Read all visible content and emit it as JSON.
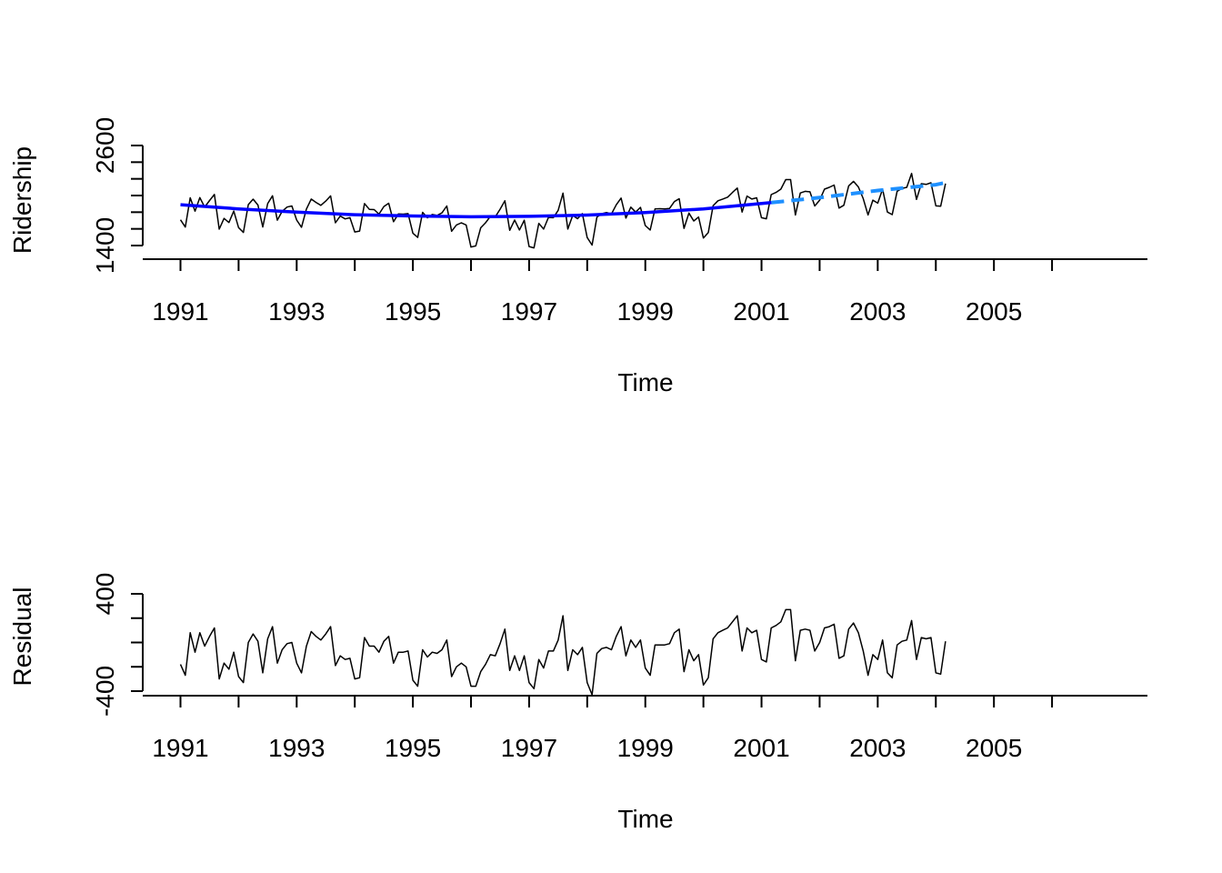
{
  "chart_data": [
    {
      "type": "line",
      "xlabel": "Time",
      "ylabel": "Ridership",
      "xlim": [
        1991,
        2006.75
      ],
      "ylim": [
        1400,
        2600
      ],
      "x_ticks": [
        1991,
        1992,
        1993,
        1994,
        1995,
        1996,
        1997,
        1998,
        1999,
        2000,
        2001,
        2002,
        2003,
        2004,
        2005,
        2006
      ],
      "x_tick_labels": [
        "1991",
        "1993",
        "1995",
        "1997",
        "1999",
        "2001",
        "2003",
        "2005"
      ],
      "y_ticks": [
        1400,
        1600,
        1800,
        2000,
        2200,
        2400,
        2600
      ],
      "y_tick_labels": [
        "1400",
        "2600"
      ],
      "series": [
        {
          "style": "solid-thin",
          "color": "#000000",
          "start": 1991,
          "step": 0.0833333,
          "values": [
            1709,
            1621,
            1973,
            1812,
            1975,
            1862,
            1940,
            2013,
            1596,
            1725,
            1676,
            1814,
            1615,
            1557,
            1891,
            1956,
            1885,
            1623,
            1903,
            1997,
            1704,
            1810,
            1862,
            1875,
            1705,
            1619,
            1837,
            1957,
            1917,
            1882,
            1933,
            1996,
            1673,
            1753,
            1720,
            1734,
            1563,
            1574,
            1903,
            1834,
            1831,
            1776,
            1868,
            1907,
            1686,
            1779,
            1776,
            1783,
            1548,
            1497,
            1798,
            1733,
            1772,
            1761,
            1792,
            1875,
            1571,
            1647,
            1673,
            1646,
            1381,
            1396,
            1613,
            1673,
            1750,
            1744,
            1835,
            1937,
            1582,
            1706,
            1587,
            1703,
            1388,
            1372,
            1666,
            1597,
            1737,
            1734,
            1822,
            2028,
            1597,
            1761,
            1722,
            1783,
            1496,
            1405,
            1740,
            1782,
            1796,
            1779,
            1889,
            1969,
            1729,
            1860,
            1801,
            1858,
            1640,
            1587,
            1839,
            1842,
            1840,
            1845,
            1927,
            1962,
            1606,
            1789,
            1695,
            1741,
            1491,
            1555,
            1878,
            1937,
            1957,
            1980,
            2037,
            2090,
            1802,
            1994,
            1957,
            1973,
            1734,
            1721,
            2011,
            2037,
            2076,
            2191,
            2191,
            1767,
            2031,
            2050,
            2045,
            1875,
            1944,
            2076,
            2098,
            2125,
            1850,
            1883,
            2116,
            2170,
            2103,
            1963,
            1767,
            1944,
            1908,
            2076,
            1801,
            1771,
            2051,
            2085,
            2098,
            2265,
            1953,
            2142,
            2133,
            2153,
            1876,
            1872,
            2143
          ]
        },
        {
          "style": "solid-thick",
          "color": "#0000ff",
          "points": [
            [
              1991,
              1890
            ],
            [
              1992,
              1840
            ],
            [
              1993,
              1800
            ],
            [
              1994,
              1770
            ],
            [
              1995,
              1755
            ],
            [
              1996,
              1745
            ],
            [
              1997,
              1750
            ],
            [
              1998,
              1765
            ],
            [
              1999,
              1795
            ],
            [
              2000,
              1840
            ],
            [
              2001.17,
              1915
            ]
          ]
        },
        {
          "style": "dashed-thick",
          "color": "#1e90ff",
          "points": [
            [
              2001.17,
              1915
            ],
            [
              2002,
              1975
            ],
            [
              2003,
              2060
            ],
            [
              2004,
              2130
            ],
            [
              2004.17,
              2155
            ]
          ]
        }
      ]
    },
    {
      "type": "line",
      "xlabel": "Time",
      "ylabel": "Residual",
      "xlim": [
        1991,
        2006.75
      ],
      "ylim": [
        -400,
        400
      ],
      "x_ticks": [
        1991,
        1992,
        1993,
        1994,
        1995,
        1996,
        1997,
        1998,
        1999,
        2000,
        2001,
        2002,
        2003,
        2004,
        2005,
        2006
      ],
      "x_tick_labels": [
        "1991",
        "1993",
        "1995",
        "1997",
        "1999",
        "2001",
        "2003",
        "2005"
      ],
      "y_ticks": [
        -400,
        -200,
        0,
        200,
        400
      ],
      "y_tick_labels": [
        "-400",
        "400"
      ],
      "series": [
        {
          "style": "solid-thin",
          "color": "#000000",
          "start": 1991,
          "step": 0.0833333,
          "values": [
            -180,
            -270,
            80,
            -80,
            80,
            -30,
            50,
            120,
            -300,
            -170,
            -220,
            -80,
            -280,
            -330,
            0,
            70,
            10,
            -250,
            30,
            130,
            -170,
            -60,
            -10,
            0,
            -170,
            -250,
            -30,
            90,
            50,
            20,
            70,
            130,
            -190,
            -110,
            -140,
            -130,
            -300,
            -290,
            40,
            -30,
            -30,
            -80,
            10,
            50,
            -170,
            -80,
            -80,
            -70,
            -310,
            -360,
            -60,
            -120,
            -80,
            -90,
            -60,
            20,
            -280,
            -200,
            -170,
            -200,
            -360,
            -360,
            -240,
            -180,
            -100,
            -110,
            -10,
            110,
            -230,
            -110,
            -230,
            -110,
            -330,
            -380,
            -140,
            -210,
            -70,
            -70,
            20,
            220,
            -230,
            -60,
            -100,
            -40,
            -330,
            -430,
            -90,
            -50,
            -40,
            -60,
            50,
            130,
            -110,
            20,
            -40,
            20,
            -210,
            -270,
            -20,
            -20,
            -20,
            -10,
            80,
            110,
            -240,
            -60,
            -150,
            -100,
            -350,
            -290,
            30,
            80,
            100,
            120,
            170,
            220,
            -70,
            120,
            80,
            100,
            -140,
            -160,
            120,
            140,
            170,
            270,
            270,
            -150,
            100,
            110,
            100,
            -70,
            0,
            120,
            130,
            150,
            -130,
            -110,
            110,
            160,
            80,
            -70,
            -270,
            -100,
            -140,
            20,
            -250,
            -290,
            -20,
            10,
            20,
            180,
            -140,
            40,
            30,
            40,
            -250,
            -260,
            10
          ]
        }
      ]
    }
  ]
}
